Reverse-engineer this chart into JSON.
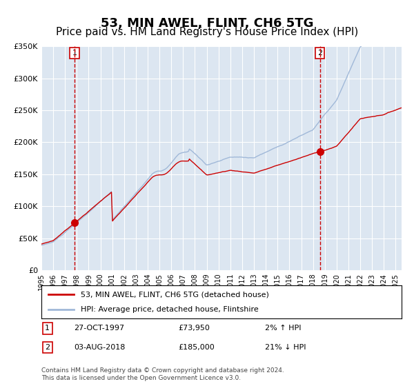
{
  "title": "53, MIN AWEL, FLINT, CH6 5TG",
  "subtitle": "Price paid vs. HM Land Registry's House Price Index (HPI)",
  "title_fontsize": 13,
  "subtitle_fontsize": 11,
  "background_color": "#dce6f1",
  "plot_bg_color": "#dce6f1",
  "fig_bg_color": "#ffffff",
  "legend_entries": [
    "53, MIN AWEL, FLINT, CH6 5TG (detached house)",
    "HPI: Average price, detached house, Flintshire"
  ],
  "legend_colors": [
    "#cc0000",
    "#a0b8d8"
  ],
  "transaction1_date": "27-OCT-1997",
  "transaction1_price": 73950,
  "transaction1_hpi_pct": "2% ↑ HPI",
  "transaction2_date": "03-AUG-2018",
  "transaction2_price": 185000,
  "transaction2_hpi_pct": "21% ↓ HPI",
  "footer": "Contains HM Land Registry data © Crown copyright and database right 2024.\nThis data is licensed under the Open Government Licence v3.0.",
  "xmin": 1995.0,
  "xmax": 2025.5,
  "ymin": 0,
  "ymax": 350000,
  "yticks": [
    0,
    50000,
    100000,
    150000,
    200000,
    250000,
    300000,
    350000
  ],
  "ytick_labels": [
    "£0",
    "£50K",
    "£100K",
    "£150K",
    "£200K",
    "£250K",
    "£300K",
    "£350K"
  ],
  "sale1_x": 1997.82,
  "sale1_y": 73950,
  "sale2_x": 2018.58,
  "sale2_y": 185000,
  "vline1_x": 1997.82,
  "vline2_x": 2018.58,
  "red_line_color": "#cc0000",
  "blue_line_color": "#a0b8d8"
}
